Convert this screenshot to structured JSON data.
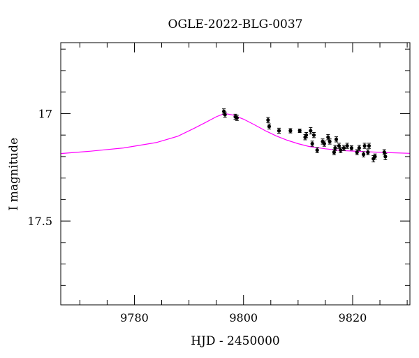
{
  "chart_data": {
    "type": "scatter",
    "title": "OGLE-2022-BLG-0037",
    "xlabel": "HJD - 2450000",
    "ylabel": "I magnitude",
    "xlim": [
      9766.5,
      9830.5
    ],
    "ylim": [
      17.89,
      16.67
    ],
    "y_inverted": true,
    "x_ticks": [
      {
        "value": 9780,
        "label": "9780"
      },
      {
        "value": 9800,
        "label": "9800"
      },
      {
        "value": 9820,
        "label": "9820"
      }
    ],
    "y_ticks": [
      {
        "value": 17.0,
        "label": "17"
      },
      {
        "value": 17.5,
        "label": "17.5"
      }
    ],
    "x_minor_step": 5,
    "y_minor_step": 0.1,
    "grid": false,
    "colors": {
      "points": "#000000",
      "model": "#ff00ff",
      "frame": "#000000"
    },
    "model": {
      "name": "",
      "points": [
        [
          9766.5,
          17.186
        ],
        [
          9772,
          17.175
        ],
        [
          9778,
          17.16
        ],
        [
          9784,
          17.135
        ],
        [
          9788,
          17.105
        ],
        [
          9791,
          17.068
        ],
        [
          9793,
          17.042
        ],
        [
          9795,
          17.015
        ],
        [
          9796.5,
          17.0
        ],
        [
          9798,
          17.006
        ],
        [
          9800,
          17.026
        ],
        [
          9802,
          17.052
        ],
        [
          9804,
          17.08
        ],
        [
          9806,
          17.104
        ],
        [
          9808,
          17.124
        ],
        [
          9810,
          17.14
        ],
        [
          9812,
          17.153
        ],
        [
          9815,
          17.164
        ],
        [
          9818,
          17.172
        ],
        [
          9822,
          17.177
        ],
        [
          9826,
          17.181
        ],
        [
          9830.5,
          17.185
        ]
      ]
    },
    "series": [
      {
        "name": "",
        "points": [
          {
            "x": 9796.4,
            "y": 16.99,
            "err": 0.012
          },
          {
            "x": 9796.6,
            "y": 17.005,
            "err": 0.012
          },
          {
            "x": 9798.5,
            "y": 17.015,
            "err": 0.012
          },
          {
            "x": 9798.8,
            "y": 17.02,
            "err": 0.012
          },
          {
            "x": 9804.5,
            "y": 17.03,
            "err": 0.012
          },
          {
            "x": 9804.7,
            "y": 17.06,
            "err": 0.012
          },
          {
            "x": 9806.5,
            "y": 17.08,
            "err": 0.012
          },
          {
            "x": 9808.6,
            "y": 17.08,
            "err": 0.01
          },
          {
            "x": 9810.3,
            "y": 17.08,
            "err": 0.008
          },
          {
            "x": 9811.3,
            "y": 17.11,
            "err": 0.012
          },
          {
            "x": 9811.5,
            "y": 17.1,
            "err": 0.012
          },
          {
            "x": 9812.3,
            "y": 17.08,
            "err": 0.015
          },
          {
            "x": 9812.6,
            "y": 17.14,
            "err": 0.012
          },
          {
            "x": 9812.9,
            "y": 17.1,
            "err": 0.012
          },
          {
            "x": 9813.5,
            "y": 17.17,
            "err": 0.012
          },
          {
            "x": 9814.5,
            "y": 17.13,
            "err": 0.012
          },
          {
            "x": 9814.8,
            "y": 17.14,
            "err": 0.012
          },
          {
            "x": 9815.5,
            "y": 17.11,
            "err": 0.012
          },
          {
            "x": 9815.8,
            "y": 17.13,
            "err": 0.012
          },
          {
            "x": 9816.6,
            "y": 17.18,
            "err": 0.012
          },
          {
            "x": 9816.8,
            "y": 17.16,
            "err": 0.012
          },
          {
            "x": 9817.0,
            "y": 17.12,
            "err": 0.012
          },
          {
            "x": 9817.5,
            "y": 17.15,
            "err": 0.012
          },
          {
            "x": 9817.8,
            "y": 17.17,
            "err": 0.012
          },
          {
            "x": 9818.4,
            "y": 17.16,
            "err": 0.012
          },
          {
            "x": 9819.0,
            "y": 17.15,
            "err": 0.012
          },
          {
            "x": 9819.8,
            "y": 17.16,
            "err": 0.01
          },
          {
            "x": 9820.8,
            "y": 17.18,
            "err": 0.012
          },
          {
            "x": 9821.2,
            "y": 17.16,
            "err": 0.012
          },
          {
            "x": 9822.0,
            "y": 17.19,
            "err": 0.012
          },
          {
            "x": 9822.2,
            "y": 17.15,
            "err": 0.012
          },
          {
            "x": 9822.8,
            "y": 17.18,
            "err": 0.012
          },
          {
            "x": 9823.0,
            "y": 17.15,
            "err": 0.012
          },
          {
            "x": 9823.8,
            "y": 17.21,
            "err": 0.015
          },
          {
            "x": 9824.1,
            "y": 17.2,
            "err": 0.012
          },
          {
            "x": 9825.8,
            "y": 17.18,
            "err": 0.012
          },
          {
            "x": 9826.0,
            "y": 17.2,
            "err": 0.015
          }
        ]
      }
    ]
  }
}
